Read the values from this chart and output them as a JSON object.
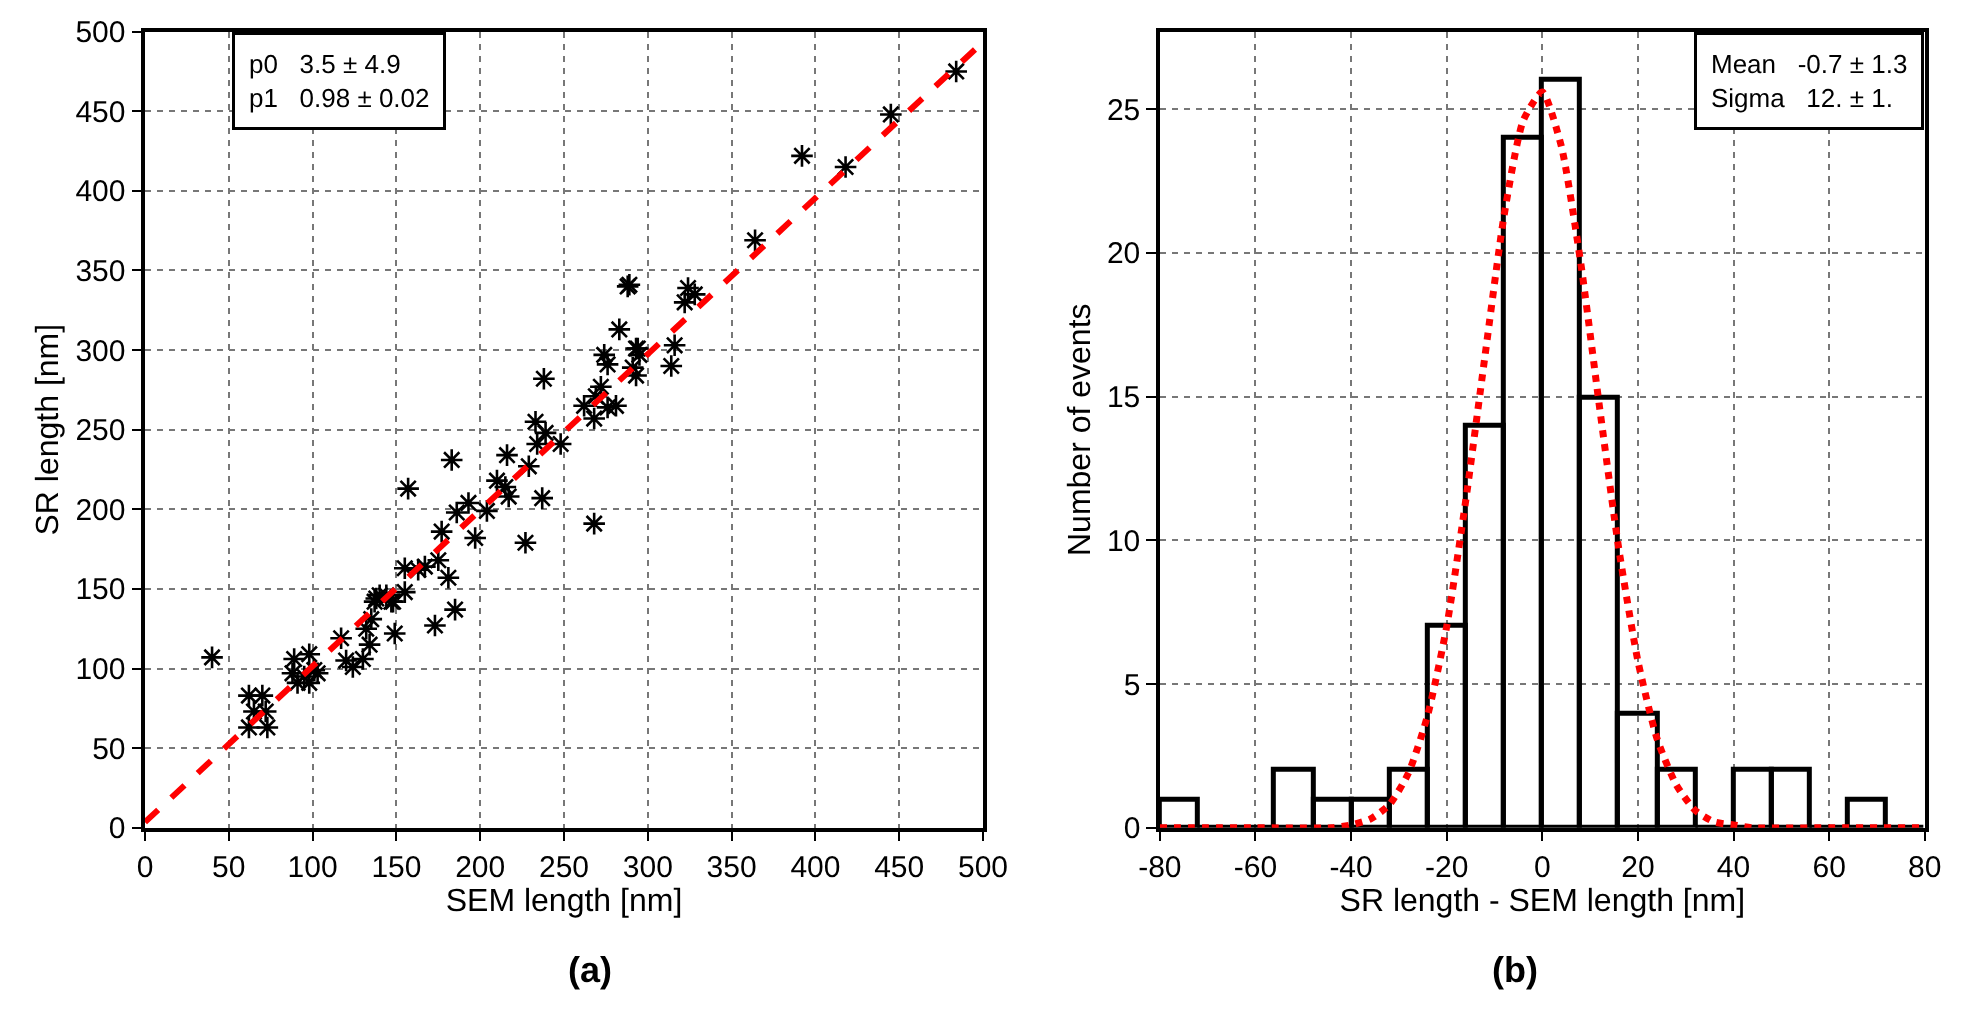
{
  "chart_data": [
    {
      "type": "scatter",
      "title": "(a)",
      "xlabel": "SEM length [nm]",
      "ylabel": "SR length [nm]",
      "annotations": [
        "p0   3.5 ± 4.9",
        "p1   0.98 ± 0.02"
      ],
      "series": [
        {
          "type": "scatter",
          "color": "#000000",
          "marker": "cross",
          "x": [
            40,
            157,
            62,
            70,
            65,
            72,
            62,
            73,
            89,
            98,
            88,
            95,
            98,
            101,
            103,
            91,
            117,
            120,
            124,
            130,
            132,
            134,
            135,
            137,
            140,
            144,
            148,
            149,
            155,
            155,
            163,
            289,
            324,
            322,
            283,
            316,
            314,
            274,
            276,
            293,
            295,
            291,
            293,
            272,
            269,
            262,
            268,
            281,
            276,
            238,
            233,
            239,
            248,
            234,
            216,
            183,
            229,
            215,
            210,
            217,
            237,
            268,
            204,
            193,
            186,
            197,
            177,
            227,
            167,
            175,
            181,
            185,
            173,
            147,
            138,
            484,
            445,
            418,
            392,
            364,
            288,
            328,
            294
          ],
          "values": [
            107,
            213,
            83,
            83,
            73,
            73,
            63,
            63,
            106,
            109,
            97,
            95,
            91,
            99,
            97,
            91,
            119,
            105,
            101,
            106,
            125,
            115,
            131,
            142,
            146,
            146,
            142,
            122,
            148,
            163,
            162,
            341,
            339,
            330,
            313,
            303,
            290,
            297,
            291,
            301,
            297,
            289,
            284,
            277,
            271,
            265,
            257,
            265,
            264,
            282,
            255,
            248,
            241,
            241,
            234,
            231,
            227,
            214,
            218,
            208,
            207,
            191,
            199,
            204,
            198,
            182,
            186,
            179,
            164,
            168,
            157,
            137,
            127,
            142,
            144,
            475,
            448,
            415,
            422,
            369,
            340,
            335,
            301
          ]
        },
        {
          "type": "line",
          "color": "#ff0000",
          "line_style": "dashed",
          "x": [
            0,
            500
          ],
          "values": [
            3.5,
            493.5
          ]
        }
      ],
      "xlim": [
        0,
        500
      ],
      "ylim": [
        0,
        500
      ],
      "xticks": [
        0,
        50,
        100,
        150,
        200,
        250,
        300,
        350,
        400,
        450,
        500
      ],
      "yticks": [
        0,
        50,
        100,
        150,
        200,
        250,
        300,
        350,
        400,
        450,
        500
      ],
      "grid": true
    },
    {
      "type": "histogram",
      "title": "(b)",
      "xlabel": "SR length - SEM length [nm]",
      "ylabel": "Number of events",
      "annotations": [
        "Mean   -0.7 ± 1.3",
        "Sigma   12. ± 1."
      ],
      "bins": [
        -80,
        -72,
        -64,
        -56,
        -48,
        -40,
        -32,
        -24,
        -16,
        -8,
        0,
        8,
        16,
        24,
        32,
        40,
        48,
        56,
        64,
        72,
        80
      ],
      "values": [
        1,
        0,
        0,
        2,
        1,
        1,
        2,
        7,
        14,
        24,
        26,
        15,
        4,
        2,
        0,
        2,
        2,
        0,
        1,
        0
      ],
      "color": "#000000",
      "series": [
        {
          "type": "line",
          "color": "#ff0000",
          "line_style": "dotted",
          "x": [
            -80,
            -60,
            -44,
            -40,
            -36,
            -32,
            -28,
            -24,
            -20,
            -16,
            -12,
            -8,
            -4,
            0,
            4,
            8,
            12,
            16,
            20,
            24,
            28,
            32,
            36,
            40,
            44,
            60,
            80
          ],
          "values": [
            0,
            0,
            0,
            0.1,
            0.3,
            0.8,
            1.9,
            3.9,
            7.0,
            11.4,
            16.4,
            21.3,
            24.6,
            25.6,
            23.7,
            19.7,
            14.6,
            9.7,
            5.8,
            3.1,
            1.5,
            0.6,
            0.2,
            0.1,
            0,
            0,
            0
          ]
        }
      ],
      "xlim": [
        -80,
        80
      ],
      "ylim": [
        0,
        27.7
      ],
      "xticks": [
        -80,
        -60,
        -40,
        -20,
        0,
        20,
        40,
        60,
        80
      ],
      "yticks": [
        0,
        5,
        10,
        15,
        20,
        25
      ],
      "grid": true
    }
  ]
}
